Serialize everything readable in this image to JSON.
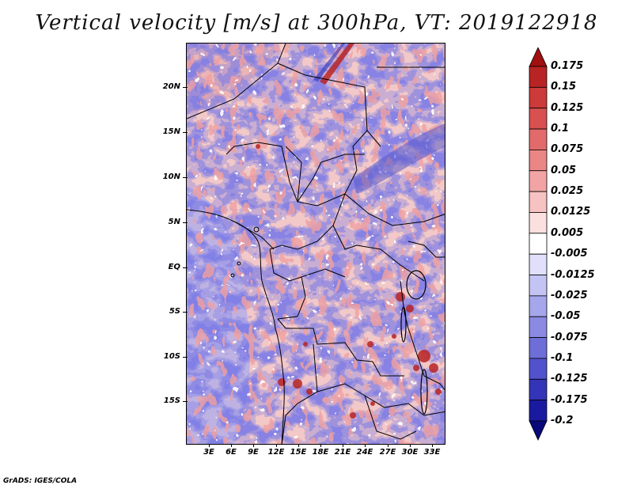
{
  "title": "Vertical velocity [m/s] at 300hPa, VT: 2019122918",
  "credit": "GrADS: IGES/COLA",
  "map": {
    "lat_labels": [
      "20N",
      "15N",
      "10N",
      "5N",
      "EQ",
      "5S",
      "10S",
      "15S"
    ],
    "lon_labels": [
      "3E",
      "6E",
      "9E",
      "12E",
      "15E",
      "18E",
      "21E",
      "24E",
      "27E",
      "30E",
      "33E"
    ],
    "lon_range": [
      0,
      35
    ],
    "lat_range": [
      -19,
      24
    ],
    "variable": "vertical velocity",
    "units": "m/s",
    "level": "300hPa",
    "valid_time": "2019122918"
  },
  "colorbar": {
    "labels": [
      "0.175",
      "0.15",
      "0.125",
      "0.1",
      "0.075",
      "0.05",
      "0.025",
      "0.0125",
      "0.005",
      "-0.005",
      "-0.0125",
      "-0.025",
      "-0.05",
      "-0.075",
      "-0.1",
      "-0.125",
      "-0.175",
      "-0.2"
    ],
    "colors": [
      "#a01010",
      "#b82424",
      "#cc3a3a",
      "#d85050",
      "#e26a6a",
      "#eb8686",
      "#f2a4a4",
      "#f7c2c2",
      "#fbe0e0",
      "#ffffff",
      "#e0e0fb",
      "#c4c4f4",
      "#a6a6ec",
      "#8a8ae2",
      "#6e6ed8",
      "#5252cc",
      "#3434b8",
      "#1a1aa0",
      "#08087a"
    ]
  }
}
